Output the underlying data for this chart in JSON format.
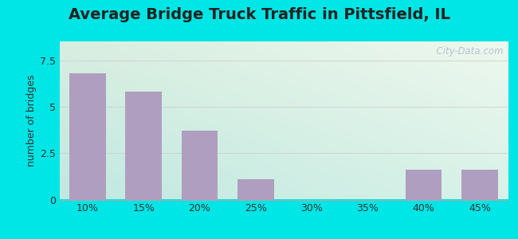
{
  "title": "Average Bridge Truck Traffic in Pittsfield, IL",
  "categories": [
    "10%",
    "15%",
    "20%",
    "25%",
    "30%",
    "35%",
    "40%",
    "45%"
  ],
  "values": [
    6.8,
    5.8,
    3.7,
    1.1,
    0,
    0,
    1.6,
    1.6
  ],
  "bar_color": "#b09ec0",
  "ylabel": "number of bridges",
  "ylim": [
    0,
    8.5
  ],
  "yticks": [
    0,
    2.5,
    5,
    7.5
  ],
  "background_outer": "#00e5e5",
  "bg_top_left": "#d8eed8",
  "bg_top_right": "#e8f5ee",
  "bg_bottom_left": "#c8ece8",
  "bg_bottom_right": "#d8f0ec",
  "grid_color": "#cccccc",
  "title_fontsize": 14,
  "title_color": "#222222",
  "watermark": "  City-Data.com",
  "watermark_color": "#aabbcc"
}
